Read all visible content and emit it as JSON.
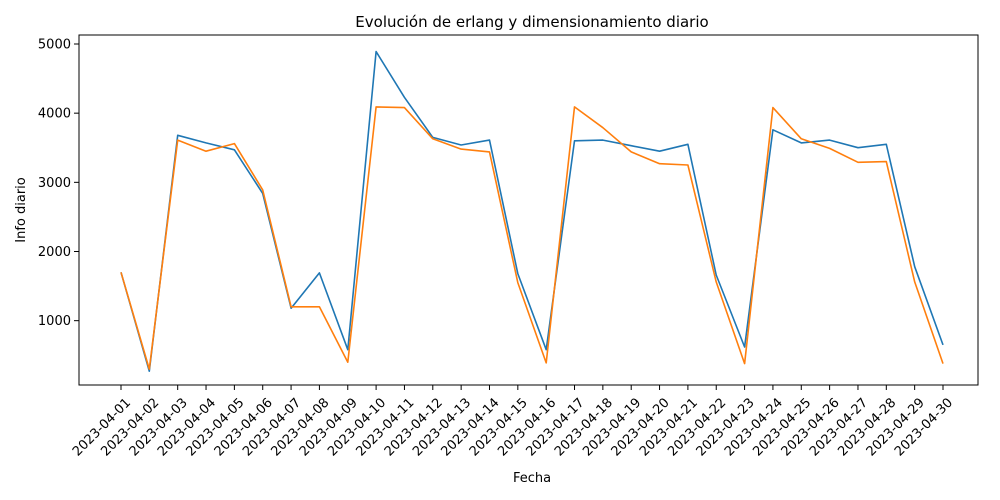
{
  "chart_data": {
    "type": "line",
    "title": "Evolución de erlang y dimensionamiento diario",
    "xlabel": "Fecha",
    "ylabel": "Info diario",
    "ylim": [
      70,
      5130
    ],
    "yticks": [
      1000,
      2000,
      3000,
      4000,
      5000
    ],
    "grid": false,
    "legend": "none",
    "x": [
      "2023-04-01",
      "2023-04-02",
      "2023-04-03",
      "2023-04-04",
      "2023-04-05",
      "2023-04-06",
      "2023-04-07",
      "2023-04-08",
      "2023-04-09",
      "2023-04-10",
      "2023-04-11",
      "2023-04-12",
      "2023-04-13",
      "2023-04-14",
      "2023-04-15",
      "2023-04-16",
      "2023-04-17",
      "2023-04-18",
      "2023-04-19",
      "2023-04-20",
      "2023-04-21",
      "2023-04-22",
      "2023-04-23",
      "2023-04-24",
      "2023-04-25",
      "2023-04-26",
      "2023-04-27",
      "2023-04-28",
      "2023-04-29",
      "2023-04-30"
    ],
    "series": [
      {
        "color": "#1f77b4",
        "values": [
          1700,
          270,
          3680,
          3570,
          3470,
          2840,
          1180,
          1690,
          580,
          4890,
          4230,
          3650,
          3540,
          3610,
          1680,
          580,
          3600,
          3610,
          3530,
          3450,
          3550,
          1660,
          620,
          3760,
          3570,
          3610,
          3500,
          3550,
          1780,
          650
        ]
      },
      {
        "color": "#ff7f0e",
        "values": [
          1700,
          300,
          3610,
          3450,
          3560,
          2890,
          1200,
          1200,
          400,
          4090,
          4080,
          3630,
          3480,
          3440,
          1550,
          390,
          4090,
          3790,
          3440,
          3270,
          3250,
          1560,
          380,
          4080,
          3630,
          3490,
          3290,
          3300,
          1560,
          380
        ]
      }
    ]
  }
}
